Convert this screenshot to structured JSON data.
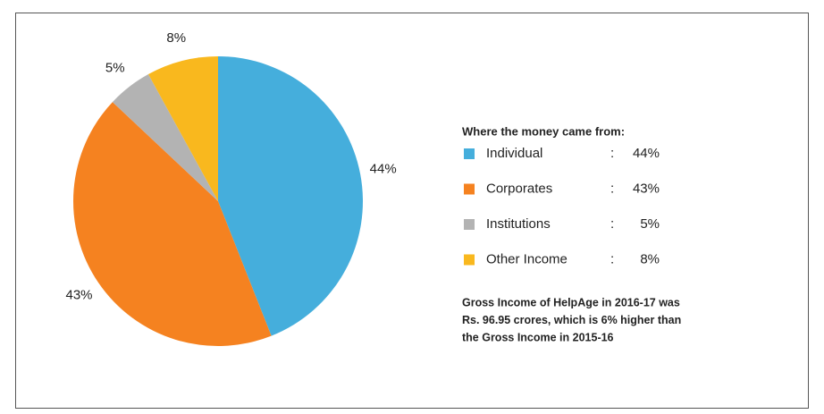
{
  "chart_data": {
    "type": "pie",
    "title": "Where the money came from:",
    "categories": [
      "Individual",
      "Corporates",
      "Institutions",
      "Other Income"
    ],
    "values": [
      44,
      43,
      5,
      8
    ],
    "value_labels": [
      "44%",
      "43%",
      "5%",
      "8%"
    ],
    "colors": [
      "#45aedc",
      "#f58220",
      "#b3b3b3",
      "#f9b81e"
    ],
    "legend_separator": ":",
    "note": [
      "Gross Income of HelpAge in 2016-17 was",
      "Rs. 96.95 crores, which is 6% higher than",
      "the Gross Income in 2015-16"
    ]
  }
}
